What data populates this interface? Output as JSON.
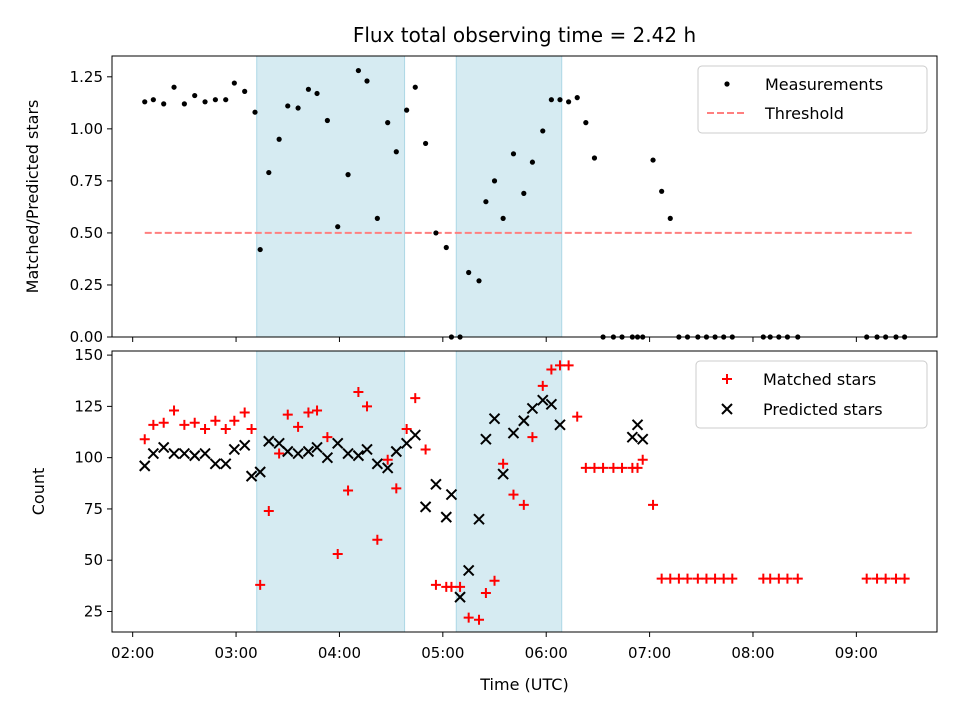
{
  "chart_data": [
    {
      "panel": "top",
      "type": "scatter",
      "title": "Flux total observing time = 2.42 h",
      "xlabel": "",
      "ylabel": "Matched/Predicted stars",
      "ylim": [
        0,
        1.35
      ],
      "yticks": [
        "0.00",
        "0.25",
        "0.50",
        "0.75",
        "1.00",
        "1.25"
      ],
      "shaded_spans_hours": [
        [
          3.2,
          4.63
        ],
        [
          5.13,
          6.15
        ]
      ],
      "shade_color": "#add8e6",
      "legend": {
        "placement": "upper-right",
        "entries": [
          "Measurements",
          "Threshold"
        ]
      },
      "series": [
        {
          "name": "Measurements",
          "marker": "dot",
          "color": "#000000",
          "x": [
            "02:07",
            "02:12",
            "02:18",
            "02:24",
            "02:30",
            "02:36",
            "02:42",
            "02:48",
            "02:54",
            "02:59",
            "03:05",
            "03:11",
            "03:14",
            "03:19",
            "03:25",
            "03:30",
            "03:36",
            "03:42",
            "03:47",
            "03:53",
            "03:59",
            "04:05",
            "04:11",
            "04:16",
            "04:22",
            "04:28",
            "04:33",
            "04:39",
            "04:44",
            "04:50",
            "04:56",
            "05:02",
            "05:05",
            "05:10",
            "05:15",
            "05:21",
            "05:25",
            "05:30",
            "05:35",
            "05:41",
            "05:47",
            "05:52",
            "05:58",
            "06:03",
            "06:08",
            "06:13",
            "06:18",
            "06:23",
            "06:28",
            "06:33",
            "06:39",
            "06:44",
            "06:50",
            "06:53",
            "06:56",
            "07:02",
            "07:07",
            "07:12",
            "07:17",
            "07:22",
            "07:28",
            "07:33",
            "07:38",
            "07:43",
            "07:48",
            "08:06",
            "08:10",
            "08:15",
            "08:20",
            "08:26",
            "09:06",
            "09:12",
            "09:17",
            "09:23",
            "09:28"
          ],
          "y": [
            1.13,
            1.14,
            1.12,
            1.2,
            1.12,
            1.16,
            1.13,
            1.14,
            1.14,
            1.22,
            1.18,
            1.08,
            0.42,
            0.79,
            0.95,
            1.11,
            1.1,
            1.19,
            1.17,
            1.04,
            0.53,
            0.78,
            1.28,
            1.23,
            0.57,
            1.03,
            0.89,
            1.09,
            1.2,
            0.93,
            0.5,
            0.43,
            0.0,
            0.0,
            0.31,
            0.27,
            0.65,
            0.75,
            0.57,
            0.88,
            0.69,
            0.84,
            0.99,
            1.14,
            1.14,
            1.13,
            1.15,
            1.03,
            0.86,
            0.0,
            0.0,
            0.0,
            0.0,
            0.0,
            0.0,
            0.85,
            0.7,
            0.57,
            0.0,
            0.0,
            0.0,
            0.0,
            0.0,
            0.0,
            0.0,
            0.0,
            0.0,
            0.0,
            0.0,
            0.0,
            0.0,
            0.0,
            0.0,
            0.0,
            0.0
          ]
        },
        {
          "name": "Threshold",
          "marker": "dashed-line",
          "color": "#ff7f7f",
          "x": [
            "02:07",
            "09:33"
          ],
          "y": [
            0.5,
            0.5
          ]
        }
      ]
    },
    {
      "panel": "bottom",
      "type": "scatter",
      "title": "",
      "xlabel": "Time (UTC)",
      "ylabel": "Count",
      "ylim": [
        15,
        152
      ],
      "yticks": [
        "25",
        "50",
        "75",
        "100",
        "125",
        "150"
      ],
      "xticks": [
        "02:00",
        "03:00",
        "04:00",
        "05:00",
        "06:00",
        "07:00",
        "08:00",
        "09:00"
      ],
      "shaded_spans_hours": [
        [
          3.2,
          4.63
        ],
        [
          5.13,
          6.15
        ]
      ],
      "shade_color": "#add8e6",
      "legend": {
        "placement": "upper-right",
        "entries": [
          "Matched stars",
          "Predicted stars"
        ]
      },
      "series": [
        {
          "name": "Matched stars",
          "marker": "plus",
          "color": "#ff0000",
          "x": [
            "02:07",
            "02:12",
            "02:18",
            "02:24",
            "02:30",
            "02:36",
            "02:42",
            "02:48",
            "02:54",
            "02:59",
            "03:05",
            "03:09",
            "03:14",
            "03:19",
            "03:25",
            "03:30",
            "03:36",
            "03:42",
            "03:47",
            "03:53",
            "03:59",
            "04:05",
            "04:11",
            "04:16",
            "04:22",
            "04:28",
            "04:33",
            "04:39",
            "04:44",
            "04:50",
            "04:56",
            "05:02",
            "05:05",
            "05:10",
            "05:15",
            "05:21",
            "05:25",
            "05:30",
            "05:35",
            "05:41",
            "05:47",
            "05:52",
            "05:58",
            "06:03",
            "06:08",
            "06:13",
            "06:18",
            "06:23",
            "06:28",
            "06:33",
            "06:39",
            "06:44",
            "06:50",
            "06:53",
            "06:56",
            "07:02",
            "07:07",
            "07:12",
            "07:17",
            "07:22",
            "07:28",
            "07:33",
            "07:38",
            "07:43",
            "07:48",
            "08:06",
            "08:10",
            "08:15",
            "08:20",
            "08:26",
            "09:06",
            "09:12",
            "09:17",
            "09:23",
            "09:28"
          ],
          "y": [
            109,
            116,
            117,
            123,
            116,
            117,
            114,
            118,
            114,
            118,
            122,
            114,
            38,
            74,
            102,
            121,
            115,
            122,
            123,
            110,
            53,
            84,
            132,
            125,
            60,
            99,
            85,
            114,
            129,
            104,
            38,
            37,
            37,
            37,
            22,
            21,
            34,
            40,
            97,
            82,
            77,
            110,
            135,
            143,
            145,
            145,
            120,
            95,
            95,
            95,
            95,
            95,
            95,
            95,
            99,
            77,
            41,
            41,
            41,
            41,
            41,
            41,
            41,
            41,
            41,
            41,
            41,
            41,
            41,
            41,
            41,
            41,
            41,
            41,
            41
          ]
        },
        {
          "name": "Predicted stars",
          "marker": "x",
          "color": "#000000",
          "x": [
            "02:07",
            "02:12",
            "02:18",
            "02:24",
            "02:30",
            "02:36",
            "02:42",
            "02:48",
            "02:54",
            "02:59",
            "03:05",
            "03:09",
            "03:14",
            "03:19",
            "03:25",
            "03:30",
            "03:36",
            "03:42",
            "03:47",
            "03:53",
            "03:59",
            "04:05",
            "04:11",
            "04:16",
            "04:22",
            "04:28",
            "04:33",
            "04:39",
            "04:44",
            "04:50",
            "04:56",
            "05:02",
            "05:05",
            "05:10",
            "05:15",
            "05:21",
            "05:25",
            "05:30",
            "05:35",
            "05:41",
            "05:47",
            "05:52",
            "05:58",
            "06:03",
            "06:08",
            "06:50",
            "06:53",
            "06:56"
          ],
          "y": [
            96,
            102,
            105,
            102,
            102,
            101,
            102,
            97,
            97,
            104,
            106,
            91,
            93,
            108,
            107,
            103,
            102,
            103,
            105,
            100,
            107,
            102,
            101,
            104,
            97,
            95,
            103,
            107,
            111,
            76,
            87,
            71,
            82,
            32,
            45,
            70,
            109,
            119,
            92,
            112,
            118,
            124,
            128,
            126,
            116,
            110,
            116,
            109
          ]
        }
      ]
    }
  ]
}
